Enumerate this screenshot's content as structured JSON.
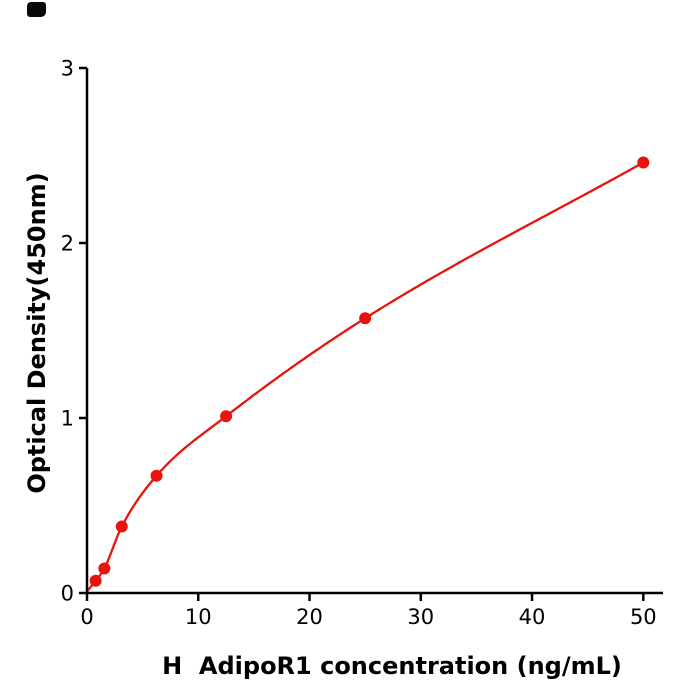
{
  "figure": {
    "background": "#ffffff",
    "accent_color": "#e8130c"
  },
  "chart_data": {
    "type": "scatter",
    "title": "",
    "xlabel": "H  AdipoR1 concentration (ng/mL)",
    "ylabel": "Optical Density(450nm)",
    "x": [
      0.78,
      1.56,
      3.125,
      6.25,
      12.5,
      25,
      50
    ],
    "y": [
      0.07,
      0.14,
      0.38,
      0.67,
      1.01,
      1.57,
      2.46
    ],
    "curve_start": [
      0,
      0.01
    ],
    "xlim": [
      0,
      51.5
    ],
    "ylim": [
      0,
      3
    ],
    "xticks": [
      0,
      10,
      20,
      30,
      40,
      50
    ],
    "yticks": [
      0,
      1,
      2,
      3
    ],
    "marker_color": "#e8130c",
    "line_color": "#e8130c",
    "axis_color": "#000000",
    "grid": false,
    "legend": null,
    "fit_type": "smooth curve fit through standards"
  }
}
